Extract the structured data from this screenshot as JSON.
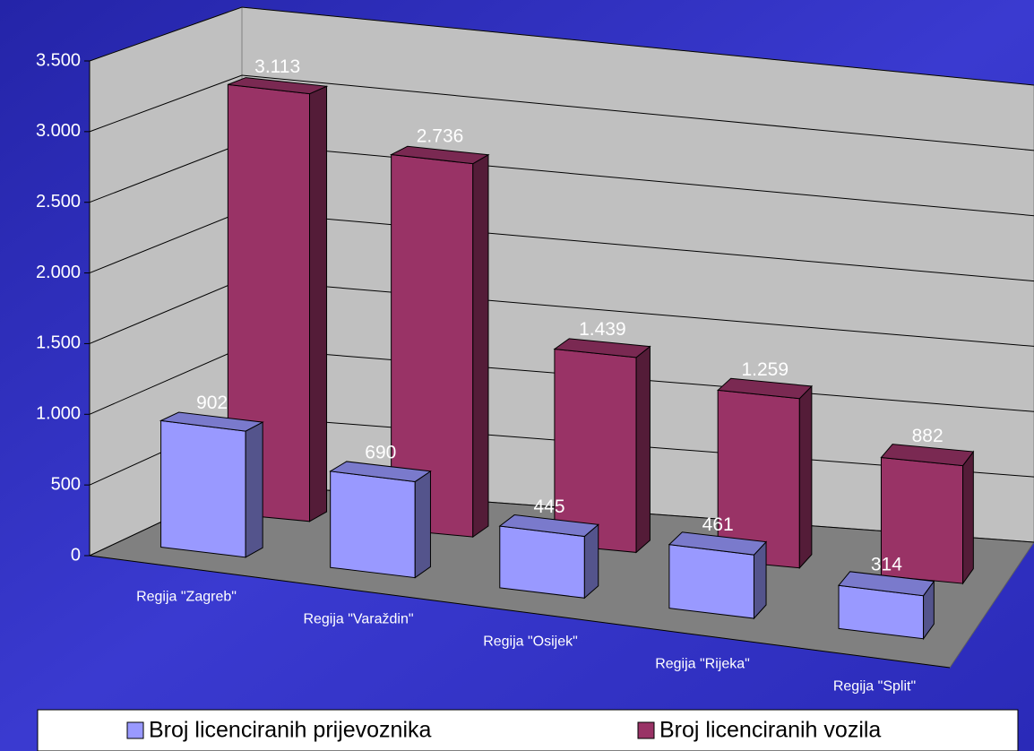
{
  "chart_data": {
    "type": "bar3d",
    "categories": [
      "Regija \"Zagreb\"",
      "Regija \"Varaždin\"",
      "Regija \"Osijek\"",
      "Regija \"Rijeka\"",
      "Regija \"Split\""
    ],
    "series": [
      {
        "name": "Broj licenciranih prijevoznika",
        "color": "#9999ff",
        "values": [
          902,
          690,
          445,
          461,
          314
        ]
      },
      {
        "name": "Broj licenciranih vozila",
        "color": "#993366",
        "values": [
          3113,
          2736,
          1439,
          1259,
          882
        ],
        "value_labels": [
          "3.113",
          "2.736",
          "1.439",
          "1.259",
          "882"
        ]
      }
    ],
    "ylim": [
      0,
      3500
    ],
    "yticks": [
      0,
      500,
      {
        "value": 1000,
        "label": "1.000"
      },
      {
        "value": 1500,
        "label": "1.500"
      },
      {
        "value": 2000,
        "label": "2.000"
      },
      {
        "value": 2500,
        "label": "2.500"
      },
      {
        "value": 3000,
        "label": "3.000"
      },
      {
        "value": 3500,
        "label": "3.500"
      }
    ],
    "grid": true,
    "legend": "bottom"
  }
}
